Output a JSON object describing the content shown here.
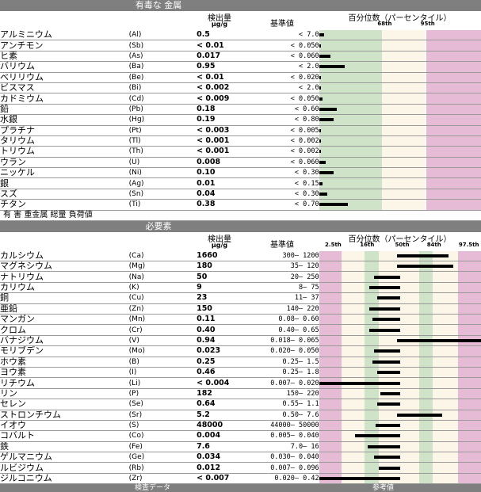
{
  "toxic": {
    "title": "有毒な 金属",
    "value_label": "検出量",
    "unit": "µg/g",
    "ref_label": "基準値",
    "pct_label": "百分位数（パーセンタイル）",
    "ticks": [
      "68th",
      "95th"
    ],
    "rows": [
      {
        "name": "アルミニウム",
        "sym": "(Al)",
        "val": "0.5",
        "ref": "<   7.0",
        "level": 0.03
      },
      {
        "name": "アンチモン",
        "sym": "(Sb)",
        "val": "< 0.01",
        "ref": "< 0.050",
        "level": 0.01
      },
      {
        "name": "ヒ素",
        "sym": "(As)",
        "val": "0.017",
        "ref": "< 0.060",
        "level": 0.07
      },
      {
        "name": "バリウム",
        "sym": "(Ba)",
        "val": "0.95",
        "ref": "<   2.0",
        "level": 0.16
      },
      {
        "name": "ベリリウム",
        "sym": "(Be)",
        "val": "< 0.01",
        "ref": "< 0.020",
        "level": 0.01
      },
      {
        "name": "ビスマス",
        "sym": "(Bi)",
        "val": "< 0.002",
        "ref": "<   2.0",
        "level": 0.01
      },
      {
        "name": "カドミウム",
        "sym": "(Cd)",
        "val": "< 0.009",
        "ref": "< 0.050",
        "level": 0.02
      },
      {
        "name": "鉛",
        "sym": "(Pb)",
        "val": "0.18",
        "ref": "<  0.60",
        "level": 0.11
      },
      {
        "name": "水銀",
        "sym": "(Hg)",
        "val": "0.19",
        "ref": "<  0.80",
        "level": 0.09
      },
      {
        "name": "プラチナ",
        "sym": "(Pt)",
        "val": "< 0.003",
        "ref": "< 0.005",
        "level": 0.01
      },
      {
        "name": "タリウム",
        "sym": "(Tl)",
        "val": "< 0.001",
        "ref": "< 0.002",
        "level": 0.01
      },
      {
        "name": "トリウム",
        "sym": "(Th)",
        "val": "< 0.001",
        "ref": "< 0.002",
        "level": 0.01
      },
      {
        "name": "ウラン",
        "sym": "(U)",
        "val": "0.008",
        "ref": "< 0.060",
        "level": 0.04
      },
      {
        "name": "ニッケル",
        "sym": "(Ni)",
        "val": "0.10",
        "ref": "<  0.30",
        "level": 0.09
      },
      {
        "name": "銀",
        "sym": "(Ag)",
        "val": "0.01",
        "ref": "<  0.15",
        "level": 0.02
      },
      {
        "name": "スズ",
        "sym": "(Sn)",
        "val": "0.04",
        "ref": "<  0.30",
        "level": 0.05
      },
      {
        "name": "チタン",
        "sym": "(Ti)",
        "val": "0.38",
        "ref": "<  0.70",
        "level": 0.18
      }
    ],
    "footer": "有 害 重金属 総量 負荷値"
  },
  "essential": {
    "title": "必要素",
    "value_label": "検出量",
    "unit": "µg/g",
    "ref_label": "基準値",
    "pct_label": "百分位数（パーセンタイル）",
    "ticks": [
      "2.5th",
      "16th",
      "50th",
      "84th",
      "97.5th"
    ],
    "rows": [
      {
        "name": "カルシウム",
        "sym": "(Ca)",
        "val": "1660",
        "ref": "300–  1200",
        "from": 0.48,
        "to": 0.8
      },
      {
        "name": "マグネシウム",
        "sym": "(Mg)",
        "val": "180",
        "ref": "35–   120",
        "from": 0.48,
        "to": 0.83
      },
      {
        "name": "ナトリウム",
        "sym": "(Na)",
        "val": "50",
        "ref": "20–   250",
        "from": 0.34,
        "to": 0.5
      },
      {
        "name": "カリウム",
        "sym": "(K)",
        "val": "9",
        "ref": "8–    75",
        "from": 0.31,
        "to": 0.5
      },
      {
        "name": "銅",
        "sym": "(Cu)",
        "val": "23",
        "ref": "11–    37",
        "from": 0.36,
        "to": 0.5
      },
      {
        "name": "亜鉛",
        "sym": "(Zn)",
        "val": "150",
        "ref": "140–   220",
        "from": 0.31,
        "to": 0.5
      },
      {
        "name": "マンガン",
        "sym": "(Mn)",
        "val": "0.11",
        "ref": "0.08–  0.60",
        "from": 0.33,
        "to": 0.5
      },
      {
        "name": "クロム",
        "sym": "(Cr)",
        "val": "0.40",
        "ref": "0.40–  0.65",
        "from": 0.31,
        "to": 0.5
      },
      {
        "name": "バナジウム",
        "sym": "(V)",
        "val": "0.94",
        "ref": "0.018– 0.065",
        "from": 0.48,
        "to": 1.0
      },
      {
        "name": "モリブデン",
        "sym": "(Mo)",
        "val": "0.023",
        "ref": "0.020– 0.050",
        "from": 0.34,
        "to": 0.5
      },
      {
        "name": "ホウ素",
        "sym": "(B)",
        "val": "0.25",
        "ref": "0.25–   1.5",
        "from": 0.33,
        "to": 0.5
      },
      {
        "name": "ヨウ素",
        "sym": "(I)",
        "val": "0.46",
        "ref": "0.25–   1.8",
        "from": 0.36,
        "to": 0.5
      },
      {
        "name": "リチウム",
        "sym": "(Li)",
        "val": "< 0.004",
        "ref": "0.007– 0.020",
        "from": 0.0,
        "to": 0.5
      },
      {
        "name": "リン",
        "sym": "(P)",
        "val": "182",
        "ref": "150–   220",
        "from": 0.38,
        "to": 0.5
      },
      {
        "name": "セレン",
        "sym": "(Se)",
        "val": "0.64",
        "ref": "0.55–   1.1",
        "from": 0.36,
        "to": 0.5
      },
      {
        "name": "ストロンチウム",
        "sym": "(Sr)",
        "val": "5.2",
        "ref": "0.50–   7.6",
        "from": 0.48,
        "to": 0.76
      },
      {
        "name": "イオウ",
        "sym": "(S)",
        "val": "48000",
        "ref": "44000– 50000",
        "from": 0.35,
        "to": 0.5
      },
      {
        "name": "コバルト",
        "sym": "(Co)",
        "val": "0.004",
        "ref": "0.005– 0.040",
        "from": 0.22,
        "to": 0.5
      },
      {
        "name": "鉄",
        "sym": "(Fe)",
        "val": "7.6",
        "ref": "7.0–    16",
        "from": 0.3,
        "to": 0.5
      },
      {
        "name": "ゲルマニウム",
        "sym": "(Ge)",
        "val": "0.034",
        "ref": "0.030– 0.040",
        "from": 0.34,
        "to": 0.5
      },
      {
        "name": "ルビジウム",
        "sym": "(Rb)",
        "val": "0.012",
        "ref": "0.007– 0.096",
        "from": 0.37,
        "to": 0.5
      },
      {
        "name": "ジルコニウム",
        "sym": "(Zr)",
        "val": "< 0.007",
        "ref": "0.020–  0.42",
        "from": 0.0,
        "to": 0.5
      }
    ]
  },
  "bottom": {
    "left": "検査データ",
    "right": "参考値"
  },
  "colors": {
    "header": "#7f7f7f",
    "green": "#cfe3c8",
    "cream": "#fbf6e8",
    "pink": "#e6bbd6",
    "bar": "#000000"
  }
}
